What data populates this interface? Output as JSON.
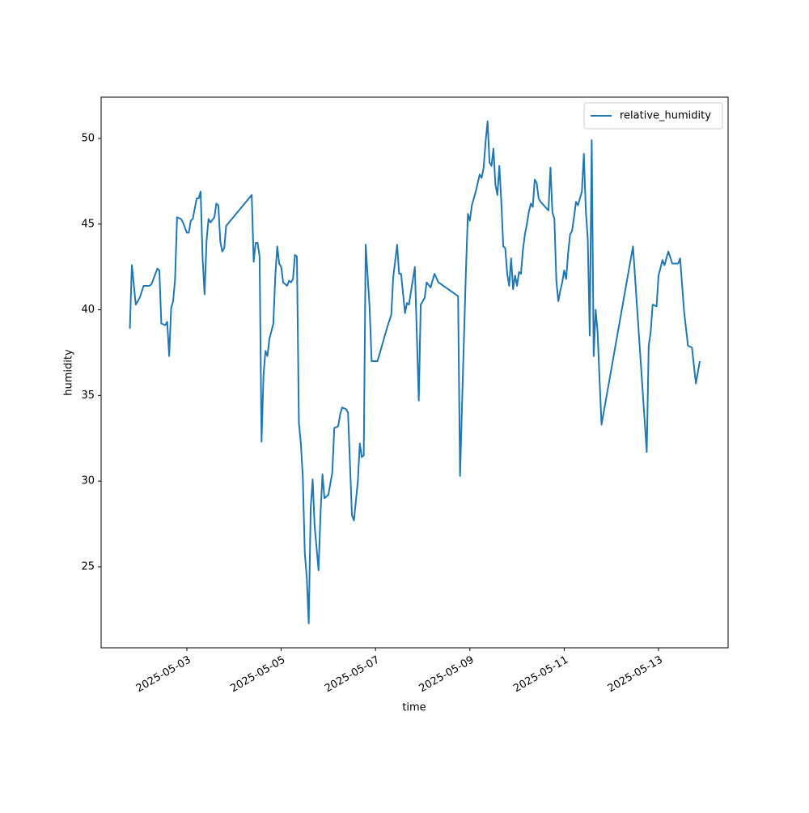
{
  "chart_data": {
    "type": "line",
    "x_label": "time",
    "y_label": "humidity",
    "x": [
      "2025-05-01T19:00",
      "2025-05-01T20:00",
      "2025-05-01T22:00",
      "2025-05-02T00:00",
      "2025-05-02T02:00",
      "2025-05-02T05:00",
      "2025-05-02T06:00",
      "2025-05-02T08:00",
      "2025-05-02T09:00",
      "2025-05-02T10:00",
      "2025-05-02T11:00",
      "2025-05-02T13:00",
      "2025-05-02T14:00",
      "2025-05-02T15:00",
      "2025-05-02T16:00",
      "2025-05-02T17:00",
      "2025-05-02T18:00",
      "2025-05-02T19:00",
      "2025-05-02T21:00",
      "2025-05-02T22:00",
      "2025-05-03T00:00",
      "2025-05-03T01:00",
      "2025-05-03T02:00",
      "2025-05-03T03:00",
      "2025-05-03T05:00",
      "2025-05-03T06:00",
      "2025-05-03T07:00",
      "2025-05-03T08:00",
      "2025-05-03T09:00",
      "2025-05-03T10:00",
      "2025-05-03T11:00",
      "2025-05-03T12:00",
      "2025-05-03T14:00",
      "2025-05-03T15:00",
      "2025-05-03T16:00",
      "2025-05-03T17:00",
      "2025-05-03T18:00",
      "2025-05-03T19:00",
      "2025-05-03T20:00",
      "2025-05-04T09:00",
      "2025-05-04T10:00",
      "2025-05-04T11:00",
      "2025-05-04T12:00",
      "2025-05-04T13:00",
      "2025-05-04T14:00",
      "2025-05-04T15:00",
      "2025-05-04T16:00",
      "2025-05-04T17:00",
      "2025-05-04T18:00",
      "2025-05-04T20:00",
      "2025-05-04T21:00",
      "2025-05-04T22:00",
      "2025-05-04T23:00",
      "2025-05-05T00:00",
      "2025-05-05T01:00",
      "2025-05-05T03:00",
      "2025-05-05T04:00",
      "2025-05-05T05:00",
      "2025-05-05T06:00",
      "2025-05-05T07:00",
      "2025-05-05T08:00",
      "2025-05-05T09:00",
      "2025-05-05T10:00",
      "2025-05-05T11:00",
      "2025-05-05T12:00",
      "2025-05-05T13:00",
      "2025-05-05T14:00",
      "2025-05-05T15:00",
      "2025-05-05T16:00",
      "2025-05-05T17:00",
      "2025-05-05T19:00",
      "2025-05-05T20:00",
      "2025-05-05T21:00",
      "2025-05-05T22:00",
      "2025-05-06T00:00",
      "2025-05-06T02:00",
      "2025-05-06T03:00",
      "2025-05-06T05:00",
      "2025-05-06T06:00",
      "2025-05-06T07:00",
      "2025-05-06T09:00",
      "2025-05-06T10:00",
      "2025-05-06T12:00",
      "2025-05-06T13:00",
      "2025-05-06T15:00",
      "2025-05-06T16:00",
      "2025-05-06T17:00",
      "2025-05-06T18:00",
      "2025-05-06T19:00",
      "2025-05-06T21:00",
      "2025-05-06T22:00",
      "2025-05-07T01:00",
      "2025-05-07T02:00",
      "2025-05-07T04:00",
      "2025-05-07T06:00",
      "2025-05-07T08:00",
      "2025-05-07T09:00",
      "2025-05-07T11:00",
      "2025-05-07T12:00",
      "2025-05-07T13:00",
      "2025-05-07T15:00",
      "2025-05-07T16:00",
      "2025-05-07T17:00",
      "2025-05-07T20:00",
      "2025-05-07T22:00",
      "2025-05-07T23:00",
      "2025-05-08T01:00",
      "2025-05-08T02:00",
      "2025-05-08T04:00",
      "2025-05-08T06:00",
      "2025-05-08T08:00",
      "2025-05-08T18:00",
      "2025-05-08T19:00",
      "2025-05-08T20:00",
      "2025-05-08T22:00",
      "2025-05-08T23:00",
      "2025-05-09T00:00",
      "2025-05-09T01:00",
      "2025-05-09T02:00",
      "2025-05-09T03:00",
      "2025-05-09T05:00",
      "2025-05-09T06:00",
      "2025-05-09T07:00",
      "2025-05-09T08:00",
      "2025-05-09T09:00",
      "2025-05-09T10:00",
      "2025-05-09T11:00",
      "2025-05-09T12:00",
      "2025-05-09T13:00",
      "2025-05-09T14:00",
      "2025-05-09T15:00",
      "2025-05-09T16:00",
      "2025-05-09T17:00",
      "2025-05-09T18:00",
      "2025-05-09T19:00",
      "2025-05-09T20:00",
      "2025-05-09T21:00",
      "2025-05-09T22:00",
      "2025-05-09T23:00",
      "2025-05-10T00:00",
      "2025-05-10T01:00",
      "2025-05-10T02:00",
      "2025-05-10T03:00",
      "2025-05-10T04:00",
      "2025-05-10T05:00",
      "2025-05-10T06:00",
      "2025-05-10T07:00",
      "2025-05-10T08:00",
      "2025-05-10T09:00",
      "2025-05-10T10:00",
      "2025-05-10T11:00",
      "2025-05-10T12:00",
      "2025-05-10T16:00",
      "2025-05-10T17:00",
      "2025-05-10T18:00",
      "2025-05-10T19:00",
      "2025-05-10T20:00",
      "2025-05-10T21:00",
      "2025-05-10T22:00",
      "2025-05-10T23:00",
      "2025-05-11T00:00",
      "2025-05-11T01:00",
      "2025-05-11T02:00",
      "2025-05-11T03:00",
      "2025-05-11T04:00",
      "2025-05-11T05:00",
      "2025-05-11T06:00",
      "2025-05-11T07:00",
      "2025-05-11T08:00",
      "2025-05-11T09:00",
      "2025-05-11T10:00",
      "2025-05-11T11:00",
      "2025-05-11T12:00",
      "2025-05-11T13:00",
      "2025-05-11T14:00",
      "2025-05-11T15:00",
      "2025-05-11T16:00",
      "2025-05-11T17:00",
      "2025-05-11T18:00",
      "2025-05-11T19:00",
      "2025-05-12T11:00",
      "2025-05-12T18:00",
      "2025-05-12T19:00",
      "2025-05-12T20:00",
      "2025-05-12T21:00",
      "2025-05-12T23:00",
      "2025-05-13T00:00",
      "2025-05-13T02:00",
      "2025-05-13T03:00",
      "2025-05-13T05:00",
      "2025-05-13T07:00",
      "2025-05-13T10:00",
      "2025-05-13T11:00",
      "2025-05-13T13:00",
      "2025-05-13T15:00",
      "2025-05-13T17:00",
      "2025-05-13T19:00",
      "2025-05-13T21:00"
    ],
    "series": [
      {
        "name": "relative_humidity",
        "color": "#1f77b4",
        "values": [
          38.9,
          42.6,
          40.3,
          40.7,
          41.4,
          41.4,
          41.5,
          42.1,
          42.4,
          42.3,
          39.2,
          39.1,
          39.3,
          37.3,
          40.1,
          40.5,
          41.8,
          45.4,
          45.3,
          45.1,
          44.5,
          44.5,
          45.2,
          45.3,
          46.5,
          46.5,
          46.9,
          43.0,
          40.9,
          44.0,
          45.3,
          45.1,
          45.4,
          46.2,
          46.1,
          44.0,
          43.4,
          43.6,
          44.9,
          46.7,
          42.8,
          43.9,
          43.9,
          43.1,
          32.3,
          36.2,
          37.6,
          37.3,
          38.3,
          39.2,
          42.0,
          43.7,
          42.7,
          42.5,
          41.6,
          41.4,
          41.7,
          41.6,
          41.8,
          43.2,
          43.1,
          33.4,
          32.2,
          30.2,
          25.8,
          24.4,
          21.7,
          28.4,
          30.1,
          27.4,
          24.8,
          28.1,
          30.4,
          29.0,
          29.2,
          30.5,
          33.1,
          33.2,
          33.9,
          34.3,
          34.2,
          34.0,
          28.0,
          27.7,
          30.0,
          32.2,
          31.4,
          31.5,
          43.8,
          40.1,
          37.0,
          37.0,
          37.4,
          38.2,
          39.0,
          39.7,
          41.9,
          43.8,
          42.1,
          42.1,
          39.8,
          40.4,
          40.3,
          42.5,
          34.7,
          40.3,
          40.7,
          41.6,
          41.3,
          42.1,
          41.6,
          40.8,
          30.3,
          34.4,
          42.3,
          45.6,
          45.2,
          46.1,
          46.5,
          46.9,
          47.9,
          47.7,
          48.3,
          49.8,
          51.0,
          48.6,
          48.4,
          49.4,
          47.3,
          46.7,
          48.4,
          46.3,
          43.7,
          43.6,
          42.1,
          41.4,
          43.0,
          41.2,
          42.0,
          41.4,
          42.2,
          42.1,
          43.5,
          44.4,
          45.0,
          45.7,
          46.2,
          46.0,
          47.6,
          47.4,
          46.5,
          46.3,
          45.8,
          48.3,
          45.7,
          45.3,
          41.7,
          40.5,
          41.1,
          41.6,
          42.3,
          41.8,
          43.3,
          44.4,
          44.6,
          45.4,
          46.3,
          46.1,
          46.5,
          46.9,
          49.1,
          45.8,
          44.1,
          38.5,
          49.9,
          37.3,
          40.0,
          38.7,
          35.9,
          33.3,
          43.7,
          31.7,
          37.9,
          38.7,
          40.3,
          40.2,
          42.0,
          42.9,
          42.6,
          43.4,
          42.7,
          42.7,
          43.0,
          39.9,
          37.9,
          37.8,
          35.7,
          37.0
        ]
      }
    ],
    "xlim": [
      "2025-05-01T04:22",
      "2025-05-14T11:24"
    ],
    "xticks": [
      "2025-05-03",
      "2025-05-05",
      "2025-05-07",
      "2025-05-09",
      "2025-05-11",
      "2025-05-13"
    ],
    "ylim": [
      20.27,
      52.41
    ],
    "yticks": [
      25,
      30,
      35,
      40,
      45,
      50
    ],
    "legend": "upper right",
    "grid": false
  }
}
